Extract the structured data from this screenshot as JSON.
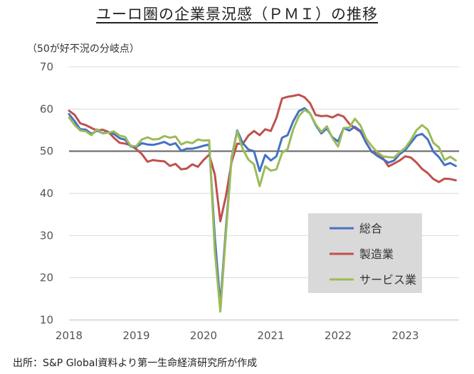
{
  "title": "ユーロ圏の企業景況感（ＰＭＩ）の推移",
  "unit_label": "（50が好不況の分岐点）",
  "source": "出所：S&P Global資料より第一生命経済研究所が作成",
  "chart_data": {
    "type": "line",
    "title": "ユーロ圏の企業景況感（ＰＭＩ）の推移",
    "ylabel": "（50が好不況の分岐点）",
    "xlabel": "",
    "ylim": [
      10,
      70
    ],
    "yticks": [
      10,
      20,
      30,
      40,
      50,
      60,
      70
    ],
    "xticks": [
      "2018",
      "2019",
      "2020",
      "2021",
      "2022",
      "2023"
    ],
    "x_start": "2018-01",
    "x_end": "2023-10",
    "reference_line": 50,
    "legend_position": "right-center",
    "grid": "horizontal",
    "series": [
      {
        "name": "総合",
        "color": "#4472c4",
        "values": [
          58.8,
          57.1,
          55.2,
          55.1,
          54.1,
          54.9,
          54.3,
          54.5,
          54.1,
          53.1,
          52.7,
          51.1,
          51.0,
          51.9,
          51.6,
          51.5,
          51.8,
          52.2,
          51.5,
          51.9,
          50.1,
          50.6,
          50.6,
          50.9,
          51.3,
          51.6,
          29.7,
          13.6,
          31.9,
          48.5,
          54.9,
          51.9,
          50.4,
          50.0,
          45.3,
          49.1,
          47.8,
          48.8,
          53.2,
          53.8,
          57.1,
          59.5,
          60.2,
          59.0,
          56.2,
          54.2,
          55.4,
          53.3,
          52.3,
          55.5,
          54.9,
          55.8,
          54.8,
          52.0,
          49.9,
          48.9,
          48.1,
          47.3,
          47.8,
          49.3,
          50.3,
          52.0,
          53.7,
          54.1,
          52.8,
          49.9,
          48.6,
          46.7,
          47.2,
          46.5
        ]
      },
      {
        "name": "製造業",
        "color": "#c0504d",
        "values": [
          59.6,
          58.6,
          56.6,
          56.2,
          55.5,
          54.9,
          55.1,
          54.6,
          53.2,
          52.0,
          51.8,
          51.4,
          50.5,
          49.3,
          47.5,
          47.9,
          47.7,
          47.6,
          46.5,
          47.0,
          45.7,
          45.9,
          46.9,
          46.3,
          47.9,
          49.2,
          44.5,
          33.4,
          39.4,
          47.4,
          51.8,
          51.7,
          53.7,
          54.8,
          53.8,
          55.2,
          54.8,
          57.9,
          62.5,
          62.9,
          63.1,
          63.4,
          62.8,
          61.4,
          58.6,
          58.3,
          58.4,
          58.0,
          58.7,
          58.2,
          56.5,
          55.5,
          54.6,
          52.1,
          49.8,
          49.6,
          48.4,
          46.4,
          47.1,
          47.8,
          48.8,
          48.5,
          47.3,
          45.8,
          44.8,
          43.4,
          42.7,
          43.5,
          43.4,
          43.1
        ]
      },
      {
        "name": "サービス業",
        "color": "#9bbb59",
        "values": [
          58.0,
          56.2,
          54.9,
          54.7,
          53.8,
          55.2,
          54.2,
          54.4,
          54.7,
          53.7,
          53.4,
          51.2,
          51.2,
          52.8,
          53.3,
          52.8,
          52.9,
          53.6,
          53.2,
          53.5,
          51.6,
          52.2,
          51.9,
          52.8,
          52.5,
          52.6,
          26.4,
          12.0,
          30.5,
          48.3,
          54.7,
          50.5,
          48.0,
          46.9,
          41.7,
          46.4,
          45.4,
          45.7,
          49.6,
          50.5,
          55.2,
          58.3,
          59.8,
          59.0,
          56.4,
          54.6,
          55.9,
          53.1,
          51.1,
          55.5,
          55.6,
          57.7,
          56.1,
          53.0,
          51.2,
          49.8,
          48.8,
          48.6,
          48.5,
          49.8,
          50.8,
          52.7,
          55.0,
          56.2,
          55.1,
          52.0,
          50.9,
          47.9,
          48.7,
          47.8
        ]
      }
    ]
  }
}
